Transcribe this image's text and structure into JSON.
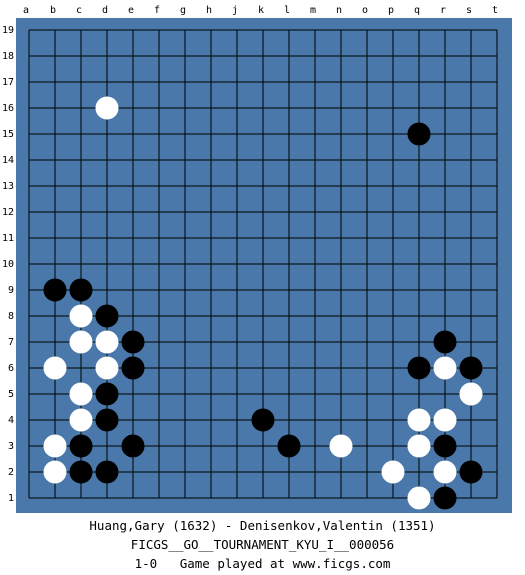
{
  "board": {
    "size": 19,
    "colors": {
      "wood": "#4a78aa",
      "line": "#000000",
      "black": "#000000",
      "white": "#ffffff"
    },
    "columns": [
      "a",
      "b",
      "c",
      "d",
      "e",
      "f",
      "g",
      "h",
      "j",
      "k",
      "l",
      "m",
      "n",
      "o",
      "p",
      "q",
      "r",
      "s",
      "t"
    ],
    "rows": [
      "19",
      "18",
      "17",
      "16",
      "15",
      "14",
      "13",
      "12",
      "11",
      "10",
      "9",
      "8",
      "7",
      "6",
      "5",
      "4",
      "3",
      "2",
      "1"
    ],
    "stones": [
      {
        "col": "d",
        "row": 16,
        "color": "white"
      },
      {
        "col": "q",
        "row": 15,
        "color": "black"
      },
      {
        "col": "b",
        "row": 9,
        "color": "black"
      },
      {
        "col": "c",
        "row": 9,
        "color": "black"
      },
      {
        "col": "c",
        "row": 8,
        "color": "white"
      },
      {
        "col": "d",
        "row": 8,
        "color": "black"
      },
      {
        "col": "c",
        "row": 7,
        "color": "white"
      },
      {
        "col": "d",
        "row": 7,
        "color": "white"
      },
      {
        "col": "e",
        "row": 7,
        "color": "black"
      },
      {
        "col": "b",
        "row": 6,
        "color": "white"
      },
      {
        "col": "d",
        "row": 6,
        "color": "white"
      },
      {
        "col": "e",
        "row": 6,
        "color": "black"
      },
      {
        "col": "c",
        "row": 5,
        "color": "white"
      },
      {
        "col": "d",
        "row": 5,
        "color": "black"
      },
      {
        "col": "c",
        "row": 4,
        "color": "white"
      },
      {
        "col": "d",
        "row": 4,
        "color": "black"
      },
      {
        "col": "b",
        "row": 3,
        "color": "white"
      },
      {
        "col": "c",
        "row": 3,
        "color": "black"
      },
      {
        "col": "e",
        "row": 3,
        "color": "black"
      },
      {
        "col": "b",
        "row": 2,
        "color": "white"
      },
      {
        "col": "c",
        "row": 2,
        "color": "black"
      },
      {
        "col": "d",
        "row": 2,
        "color": "black"
      },
      {
        "col": "k",
        "row": 4,
        "color": "black"
      },
      {
        "col": "l",
        "row": 3,
        "color": "black"
      },
      {
        "col": "n",
        "row": 3,
        "color": "white"
      },
      {
        "col": "r",
        "row": 7,
        "color": "black"
      },
      {
        "col": "q",
        "row": 6,
        "color": "black"
      },
      {
        "col": "r",
        "row": 6,
        "color": "white"
      },
      {
        "col": "s",
        "row": 6,
        "color": "black"
      },
      {
        "col": "s",
        "row": 5,
        "color": "white"
      },
      {
        "col": "q",
        "row": 4,
        "color": "white"
      },
      {
        "col": "r",
        "row": 4,
        "color": "white"
      },
      {
        "col": "q",
        "row": 3,
        "color": "white"
      },
      {
        "col": "r",
        "row": 3,
        "color": "black"
      },
      {
        "col": "p",
        "row": 2,
        "color": "white"
      },
      {
        "col": "r",
        "row": 2,
        "color": "white"
      },
      {
        "col": "s",
        "row": 2,
        "color": "black"
      },
      {
        "col": "q",
        "row": 1,
        "color": "white"
      },
      {
        "col": "r",
        "row": 1,
        "color": "black"
      }
    ]
  },
  "game_info": {
    "players": "Huang,Gary (1632) - Denisenkov,Valentin (1351)",
    "tournament": "FICGS__GO__TOURNAMENT_KYU_I__000056",
    "result_line": "1-0   Game played at www.ficgs.com"
  }
}
